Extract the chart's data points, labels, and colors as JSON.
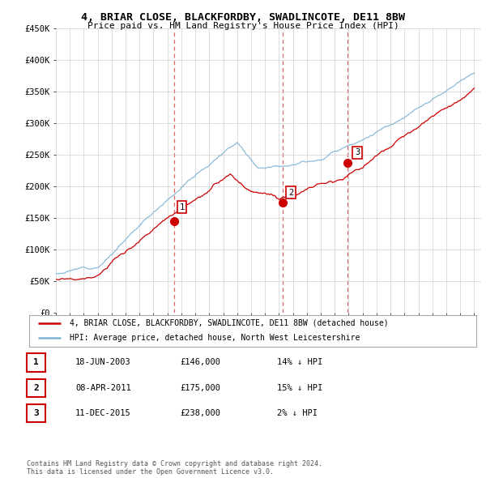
{
  "title_line1": "4, BRIAR CLOSE, BLACKFORDBY, SWADLINCOTE, DE11 8BW",
  "title_line2": "Price paid vs. HM Land Registry's House Price Index (HPI)",
  "ylim": [
    0,
    450000
  ],
  "yticks": [
    0,
    50000,
    100000,
    150000,
    200000,
    250000,
    300000,
    350000,
    400000,
    450000
  ],
  "ytick_labels": [
    "£0",
    "£50K",
    "£100K",
    "£150K",
    "£200K",
    "£250K",
    "£300K",
    "£350K",
    "£400K",
    "£450K"
  ],
  "hpi_color": "#7fb3d3",
  "price_color": "#cc0000",
  "dashed_line_color": "#cc0000",
  "sale_dates": [
    2003.46,
    2011.27,
    2015.94
  ],
  "sale_prices": [
    146000,
    175000,
    238000
  ],
  "sale_labels": [
    "1",
    "2",
    "3"
  ],
  "legend_line1": "4, BRIAR CLOSE, BLACKFORDBY, SWADLINCOTE, DE11 8BW (detached house)",
  "legend_line2": "HPI: Average price, detached house, North West Leicestershire",
  "table_rows": [
    [
      "1",
      "18-JUN-2003",
      "£146,000",
      "14% ↓ HPI"
    ],
    [
      "2",
      "08-APR-2011",
      "£175,000",
      "15% ↓ HPI"
    ],
    [
      "3",
      "11-DEC-2015",
      "£238,000",
      "2% ↓ HPI"
    ]
  ],
  "footer": "Contains HM Land Registry data © Crown copyright and database right 2024.\nThis data is licensed under the Open Government Licence v3.0.",
  "background_color": "#ffffff",
  "plot_bg_color": "#ffffff",
  "grid_color": "#d0d0d0"
}
